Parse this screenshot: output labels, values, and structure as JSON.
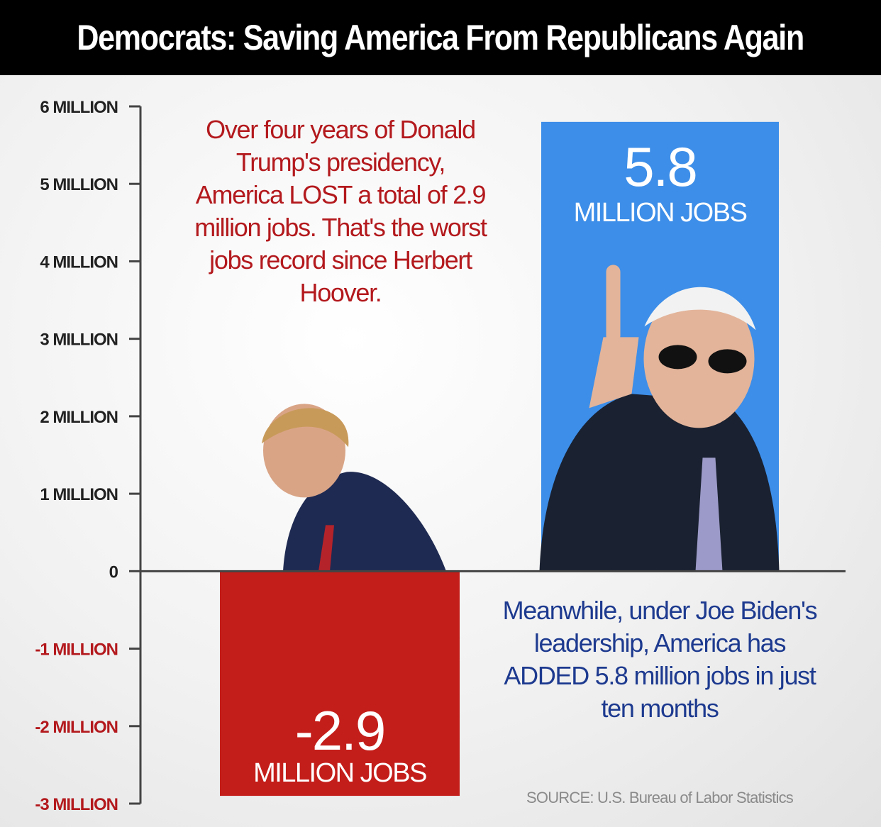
{
  "header": {
    "title": "Democrats: Saving America From Republicans Again"
  },
  "captions": {
    "trump": "Over four years of Donald Trump's presidency, America LOST a total of 2.9 million jobs. That's the worst jobs record since Herbert Hoover.",
    "biden": "Meanwhile, under Joe Biden's leadership, America has ADDED 5.8 million jobs in just ten months"
  },
  "source": "SOURCE: U.S. Bureau of Labor Statistics",
  "colors": {
    "negative": "#c41e1a",
    "positive": "#3d8ee8",
    "axis": "#444444",
    "negative_tick": "#b3191d",
    "positive_tick": "#222222"
  },
  "chart_data": {
    "type": "bar",
    "title": "",
    "xlabel": "",
    "ylabel": "",
    "ylim": [
      -3,
      6
    ],
    "grid": false,
    "yticks": [
      {
        "value": 6,
        "label": "6 MILLION"
      },
      {
        "value": 5,
        "label": "5 MILLION"
      },
      {
        "value": 4,
        "label": "4 MILLION"
      },
      {
        "value": 3,
        "label": "3 MILLION"
      },
      {
        "value": 2,
        "label": "2 MILLION"
      },
      {
        "value": 1,
        "label": "1 MILLION"
      },
      {
        "value": 0,
        "label": "0"
      },
      {
        "value": -1,
        "label": "-1 MILLION"
      },
      {
        "value": -2,
        "label": "-2 MILLION"
      },
      {
        "value": -3,
        "label": "-3 MILLION"
      }
    ],
    "bars": [
      {
        "value": -2.9,
        "value_label": "-2.9",
        "unit_label": "MILLION JOBS",
        "color": "#c41e1a"
      },
      {
        "value": 5.8,
        "value_label": "5.8",
        "unit_label": "MILLION JOBS",
        "color": "#3d8ee8"
      }
    ]
  }
}
